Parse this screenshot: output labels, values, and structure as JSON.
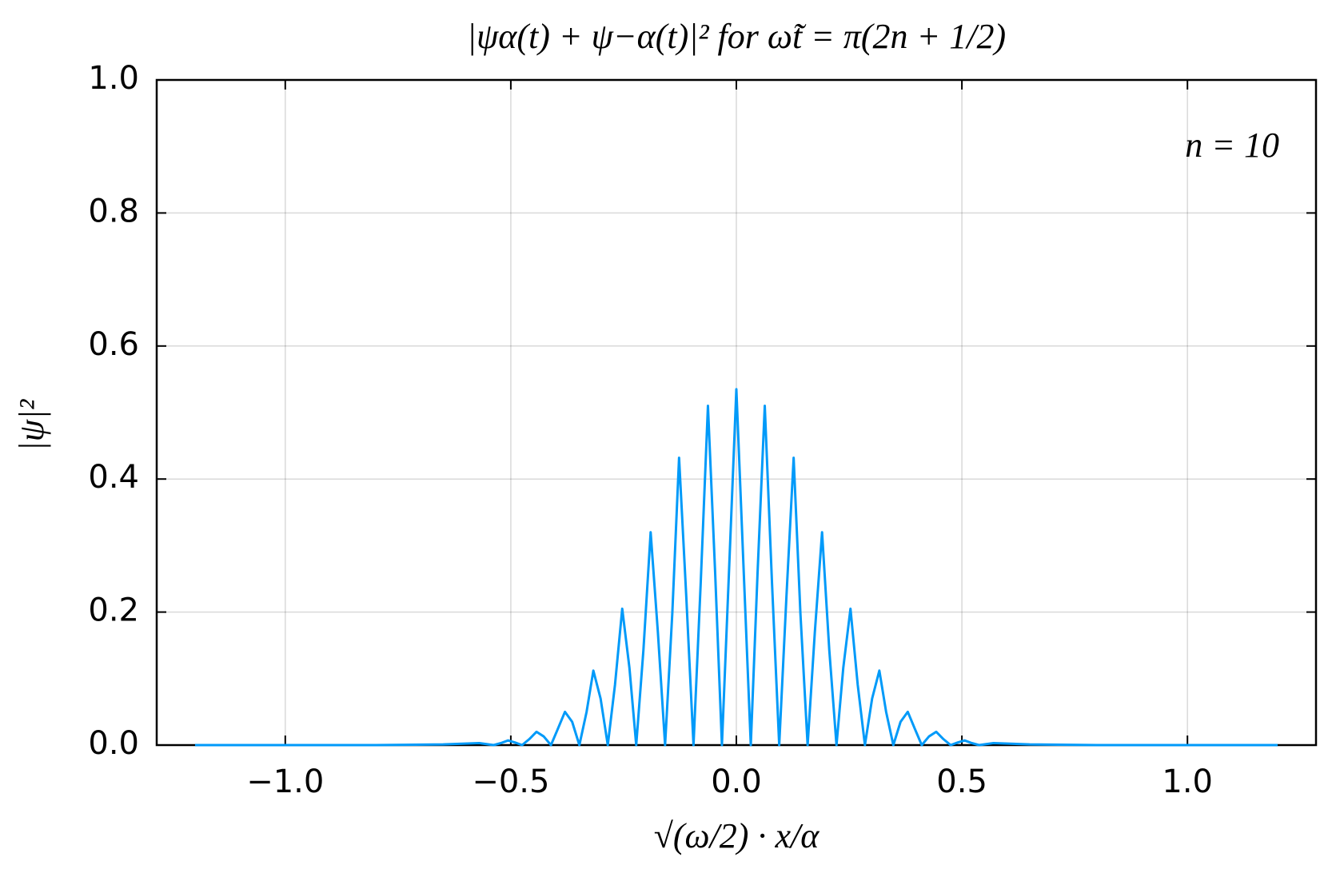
{
  "chart_data": {
    "type": "line",
    "title": "|ψα(t) + ψ−α(t)|² for ω̃t = π(2n + 1/2)",
    "x_label": "√(ω/2) · x/α",
    "y_label": "|ψ|²",
    "annotation": "n = 10",
    "x": [
      -1.2,
      -1.0,
      -0.8,
      -0.65,
      -0.57,
      -0.554,
      -0.538,
      -0.522,
      -0.506,
      -0.491,
      -0.475,
      -0.459,
      -0.443,
      -0.427,
      -0.411,
      -0.396,
      -0.38,
      -0.364,
      -0.348,
      -0.332,
      -0.317,
      -0.301,
      -0.285,
      -0.269,
      -0.253,
      -0.237,
      -0.222,
      -0.206,
      -0.19,
      -0.174,
      -0.158,
      -0.142,
      -0.127,
      -0.111,
      -0.095,
      -0.079,
      -0.063,
      -0.047,
      -0.032,
      -0.016,
      0,
      0.016,
      0.032,
      0.047,
      0.063,
      0.079,
      0.095,
      0.111,
      0.127,
      0.142,
      0.158,
      0.174,
      0.19,
      0.206,
      0.222,
      0.237,
      0.253,
      0.269,
      0.285,
      0.301,
      0.317,
      0.332,
      0.348,
      0.364,
      0.38,
      0.396,
      0.411,
      0.427,
      0.443,
      0.459,
      0.475,
      0.491,
      0.506,
      0.522,
      0.538,
      0.554,
      0.57,
      0.65,
      0.8,
      1.0,
      1.2
    ],
    "series": [
      {
        "color": "#009af9",
        "values": [
          0,
          0,
          0,
          0.001,
          0.003,
          0.0015,
          0,
          0.003,
          0.007,
          0.004,
          0,
          0.009,
          0.02,
          0.013,
          0,
          0.024,
          0.05,
          0.035,
          0,
          0.05,
          0.112,
          0.07,
          0,
          0.091,
          0.205,
          0.116,
          0,
          0.143,
          0.32,
          0.17,
          0,
          0.198,
          0.432,
          0.223,
          0,
          0.244,
          0.51,
          0.259,
          0,
          0.266,
          0.535,
          0.266,
          0,
          0.259,
          0.51,
          0.244,
          0,
          0.223,
          0.432,
          0.198,
          0,
          0.17,
          0.32,
          0.143,
          0,
          0.116,
          0.205,
          0.091,
          0,
          0.07,
          0.112,
          0.05,
          0,
          0.035,
          0.05,
          0.024,
          0,
          0.013,
          0.02,
          0.009,
          0,
          0.004,
          0.007,
          0.003,
          0,
          0.0015,
          0.003,
          0.001,
          0,
          0,
          0
        ]
      }
    ],
    "xlim": [
      -1.285,
      1.285
    ],
    "ylim": [
      0,
      1
    ],
    "xticks": [
      {
        "value": -1,
        "label": "−1.0"
      },
      {
        "value": -0.5,
        "label": "−0.5"
      },
      {
        "value": 0,
        "label": "0.0"
      },
      0.5,
      {
        "value": 1,
        "label": "1.0"
      }
    ],
    "yticks": [
      {
        "value": 0,
        "label": "0.0"
      },
      0.2,
      0.4,
      0.6,
      0.8,
      {
        "value": 1,
        "label": "1.0"
      }
    ],
    "grid": true
  }
}
